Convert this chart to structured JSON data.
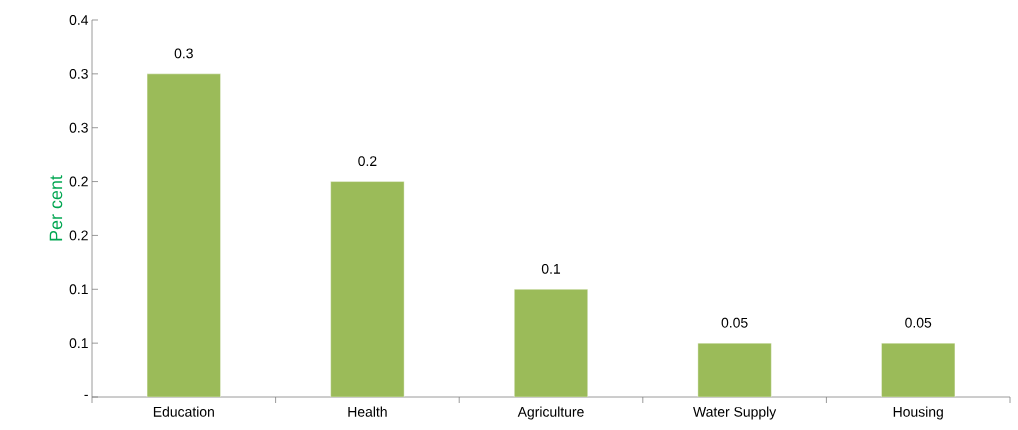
{
  "chart_data": {
    "type": "bar",
    "ylabel": "Per cent",
    "categories": [
      "Education",
      "Health",
      "Agriculture",
      "Water Supply",
      "Housing"
    ],
    "values": [
      0.3,
      0.2,
      0.1,
      0.05,
      0.05
    ],
    "color": "#9bbb59",
    "ylim": [
      0,
      0.35
    ],
    "yticks": [
      {
        "value": 0,
        "label": "-"
      },
      {
        "value": 0.05,
        "label": "0.1"
      },
      {
        "value": 0.1,
        "label": "0.1"
      },
      {
        "value": 0.15,
        "label": "0.2"
      },
      {
        "value": 0.2,
        "label": "0.2"
      },
      {
        "value": 0.25,
        "label": "0.3"
      },
      {
        "value": 0.3,
        "label": "0.3"
      },
      {
        "value": 0.35,
        "label": "0.4"
      }
    ],
    "data_labels": true,
    "grid": false
  }
}
